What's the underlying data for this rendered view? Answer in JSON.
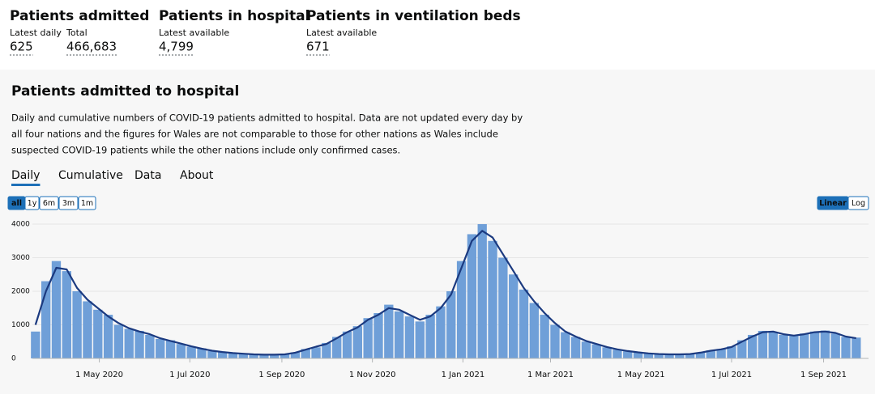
{
  "metrics": [
    {
      "title": "Patients admitted",
      "items": [
        {
          "label": "Latest daily",
          "value": "625"
        },
        {
          "label": "Total",
          "value": "466,683"
        }
      ]
    },
    {
      "title": "Patients in hospital",
      "items": [
        {
          "label": "Latest available",
          "value": "4,799"
        }
      ]
    },
    {
      "title": "Patients in ventilation beds",
      "items": [
        {
          "label": "Latest available",
          "value": "671"
        }
      ]
    }
  ],
  "card": {
    "title": "Patients admitted to hospital",
    "description": [
      "Daily and cumulative numbers of COVID-19 patients admitted to hospital. Data are not updated every day by",
      "all four nations and the figures for Wales are not comparable to those for other nations as Wales include",
      "suspected COVID-19 patients while the other nations include only confirmed cases."
    ],
    "tabs": [
      "Daily",
      "Cumulative",
      "Data",
      "About"
    ],
    "active_tab": 0,
    "ranges": [
      "all",
      "1y",
      "6m",
      "3m",
      "1m"
    ],
    "active_range": 0,
    "scales": [
      "Linear",
      "Log"
    ]
  },
  "chart_data": {
    "type": "bar",
    "log_scale": false,
    "grid": true,
    "x": [
      "2020-03-19",
      "2020-03-26",
      "2020-04-02",
      "2020-04-09",
      "2020-04-16",
      "2020-04-23",
      "2020-04-30",
      "2020-05-07",
      "2020-05-14",
      "2020-05-21",
      "2020-05-28",
      "2020-06-04",
      "2020-06-11",
      "2020-06-18",
      "2020-06-25",
      "2020-07-02",
      "2020-07-09",
      "2020-07-16",
      "2020-07-23",
      "2020-07-30",
      "2020-08-06",
      "2020-08-13",
      "2020-08-20",
      "2020-08-27",
      "2020-09-03",
      "2020-09-10",
      "2020-09-17",
      "2020-09-24",
      "2020-10-01",
      "2020-10-08",
      "2020-10-15",
      "2020-10-22",
      "2020-10-29",
      "2020-11-05",
      "2020-11-12",
      "2020-11-19",
      "2020-11-26",
      "2020-12-03",
      "2020-12-10",
      "2020-12-17",
      "2020-12-24",
      "2020-12-31",
      "2021-01-07",
      "2021-01-14",
      "2021-01-21",
      "2021-01-28",
      "2021-02-04",
      "2021-02-11",
      "2021-02-18",
      "2021-02-25",
      "2021-03-04",
      "2021-03-11",
      "2021-03-18",
      "2021-03-25",
      "2021-04-01",
      "2021-04-08",
      "2021-04-15",
      "2021-04-22",
      "2021-04-29",
      "2021-05-06",
      "2021-05-13",
      "2021-05-20",
      "2021-05-27",
      "2021-06-03",
      "2021-06-10",
      "2021-06-17",
      "2021-06-24",
      "2021-07-01",
      "2021-07-08",
      "2021-07-15",
      "2021-07-22",
      "2021-07-29",
      "2021-08-05",
      "2021-08-12",
      "2021-08-19",
      "2021-08-26",
      "2021-09-02",
      "2021-09-09",
      "2021-09-16",
      "2021-09-23"
    ],
    "series": [
      {
        "type": "bar",
        "color": "#6f9fd8",
        "values": [
          800,
          2300,
          2900,
          2600,
          2000,
          1700,
          1450,
          1300,
          1000,
          880,
          820,
          700,
          580,
          540,
          430,
          350,
          300,
          220,
          200,
          150,
          140,
          115,
          105,
          115,
          125,
          180,
          280,
          330,
          460,
          640,
          800,
          960,
          1200,
          1350,
          1600,
          1400,
          1250,
          1100,
          1300,
          1550,
          2000,
          2900,
          3700,
          4000,
          3500,
          3000,
          2500,
          2050,
          1650,
          1300,
          1000,
          780,
          640,
          500,
          420,
          330,
          260,
          210,
          170,
          145,
          125,
          115,
          118,
          135,
          175,
          240,
          280,
          360,
          540,
          700,
          820,
          790,
          700,
          670,
          740,
          800,
          830,
          740,
          640,
          620
        ]
      },
      {
        "type": "line",
        "color": "#1b3a80",
        "values": [
          1000,
          2000,
          2700,
          2650,
          2100,
          1750,
          1500,
          1250,
          1050,
          900,
          800,
          720,
          600,
          520,
          440,
          360,
          290,
          230,
          190,
          160,
          140,
          120,
          110,
          110,
          120,
          170,
          260,
          350,
          430,
          600,
          780,
          920,
          1150,
          1300,
          1500,
          1450,
          1300,
          1150,
          1250,
          1500,
          1900,
          2700,
          3500,
          3800,
          3600,
          3100,
          2600,
          2100,
          1700,
          1350,
          1050,
          800,
          650,
          520,
          430,
          340,
          270,
          220,
          180,
          150,
          130,
          120,
          120,
          130,
          170,
          230,
          270,
          340,
          500,
          650,
          780,
          800,
          720,
          680,
          720,
          780,
          800,
          760,
          650,
          600
        ]
      }
    ],
    "xlim": [
      "2020-03-18",
      "2021-09-28"
    ],
    "xticks": [
      {
        "value": "2020-05-01",
        "label": "1 May 2020"
      },
      {
        "value": "2020-07-01",
        "label": "1 Jul 2020"
      },
      {
        "value": "2020-09-01",
        "label": "1 Sep 2020"
      },
      {
        "value": "2020-11-01",
        "label": "1 Nov 2020"
      },
      {
        "value": "2021-01-01",
        "label": "1 Jan 2021"
      },
      {
        "value": "2021-03-01",
        "label": "1 Mar 2021"
      },
      {
        "value": "2021-05-01",
        "label": "1 May 2021"
      },
      {
        "value": "2021-07-01",
        "label": "1 Jul 2021"
      },
      {
        "value": "2021-09-01",
        "label": "1 Sep 2021"
      }
    ],
    "ylim": [
      0,
      4150
    ],
    "yticks": [
      0,
      1000,
      2000,
      3000,
      4000
    ]
  }
}
